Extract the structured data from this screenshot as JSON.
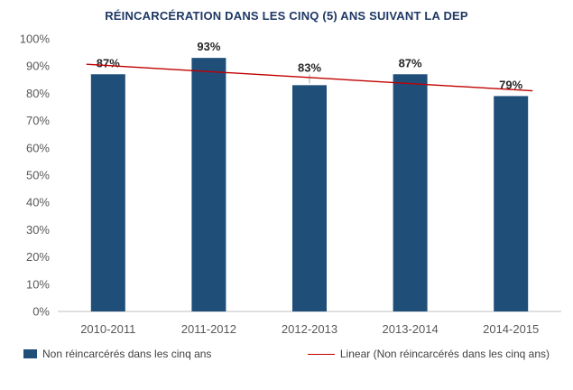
{
  "title": "RÉINCARCÉRATION DANS LES CINQ (5) ANS SUIVANT LA DEP",
  "colors": {
    "bar": "#1F4E79",
    "trend": "#C00000",
    "title": "#1F3864",
    "axis_text": "#595959",
    "data_label": "#262626",
    "baseline": "#BFBFBF",
    "leader": "#A6A6A6"
  },
  "chart_data": {
    "type": "bar",
    "title": "RÉINCARCÉRATION DANS LES CINQ (5) ANS SUIVANT LA DEP",
    "categories": [
      "2010-2011",
      "2011-2012",
      "2012-2013",
      "2013-2014",
      "2014-2015"
    ],
    "series": [
      {
        "name": "Non réincarcérés dans les cinq ans",
        "values": [
          87,
          93,
          83,
          87,
          79
        ]
      }
    ],
    "data_labels": [
      "87%",
      "93%",
      "83%",
      "87%",
      "79%"
    ],
    "ylim": [
      0,
      100
    ],
    "ytick_step": 10,
    "ytick_labels": [
      "0%",
      "10%",
      "20%",
      "30%",
      "40%",
      "50%",
      "60%",
      "70%",
      "80%",
      "90%",
      "100%"
    ],
    "grid": false,
    "legend_position": "bottom",
    "raised_label_category_index": 2,
    "trendline": {
      "type": "linear",
      "name": "Linear (Non réincarcérés dans les cinq ans)"
    }
  },
  "legend": {
    "bar_label": "Non réincarcérés dans les cinq ans",
    "trend_label": "Linear (Non réincarcérés dans les cinq ans)"
  }
}
